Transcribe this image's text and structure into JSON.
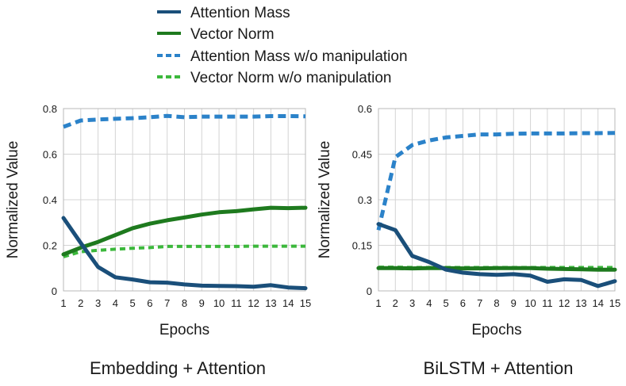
{
  "legend": [
    {
      "label": "Attention Mass",
      "color": "#1a4f7a",
      "dash": false
    },
    {
      "label": "Vector Norm",
      "color": "#1e7a1e",
      "dash": false
    },
    {
      "label": "Attention Mass w/o manipulation",
      "color": "#2b82c9",
      "dash": true
    },
    {
      "label": "Vector Norm w/o manipulation",
      "color": "#3cb83c",
      "dash": true
    }
  ],
  "chart_data": [
    {
      "type": "line",
      "title": "Embedding + Attention",
      "xlabel": "Epochs",
      "ylabel": "Normalized Value",
      "x": [
        1,
        2,
        3,
        4,
        5,
        6,
        7,
        8,
        9,
        10,
        11,
        12,
        13,
        14,
        15
      ],
      "xticks": [
        "1",
        "2",
        "3",
        "4",
        "5",
        "6",
        "7",
        "8",
        "9",
        "10",
        "11",
        "12",
        "13",
        "14",
        "15"
      ],
      "ylim": [
        0,
        0.8
      ],
      "yticks": [
        0,
        0.2,
        0.4,
        0.6,
        0.8
      ],
      "ytick_labels": [
        "0",
        "0.2",
        "0.4",
        "0.6",
        "0.8"
      ],
      "grid": true,
      "series": [
        {
          "name": "Attention Mass",
          "values": [
            0.32,
            0.21,
            0.105,
            0.06,
            0.05,
            0.038,
            0.036,
            0.028,
            0.023,
            0.022,
            0.021,
            0.018,
            0.025,
            0.015,
            0.012
          ]
        },
        {
          "name": "Vector Norm",
          "values": [
            0.16,
            0.19,
            0.215,
            0.245,
            0.275,
            0.295,
            0.31,
            0.322,
            0.335,
            0.345,
            0.35,
            0.358,
            0.365,
            0.363,
            0.365
          ]
        },
        {
          "name": "Attention Mass w/o manipulation",
          "values": [
            0.72,
            0.748,
            0.752,
            0.755,
            0.758,
            0.762,
            0.768,
            0.762,
            0.765,
            0.765,
            0.765,
            0.765,
            0.767,
            0.767,
            0.766
          ]
        },
        {
          "name": "Vector Norm w/o manipulation",
          "values": [
            0.15,
            0.172,
            0.178,
            0.183,
            0.187,
            0.19,
            0.195,
            0.195,
            0.195,
            0.195,
            0.195,
            0.196,
            0.196,
            0.196,
            0.196
          ]
        }
      ]
    },
    {
      "type": "line",
      "title": "BiLSTM + Attention",
      "xlabel": "Epochs",
      "ylabel": "Normalized Value",
      "x": [
        1,
        2,
        3,
        4,
        5,
        6,
        7,
        8,
        9,
        10,
        11,
        12,
        13,
        14,
        15
      ],
      "xticks": [
        "1",
        "2",
        "3",
        "4",
        "5",
        "6",
        "7",
        "8",
        "9",
        "10",
        "11",
        "12",
        "13",
        "14",
        "15"
      ],
      "ylim": [
        0,
        0.6
      ],
      "yticks": [
        0,
        0.15,
        0.3,
        0.45,
        0.6
      ],
      "ytick_labels": [
        "0",
        "0.15",
        "0.3",
        "0.45",
        "0.6"
      ],
      "grid": true,
      "series": [
        {
          "name": "Attention Mass",
          "values": [
            0.22,
            0.2,
            0.115,
            0.095,
            0.07,
            0.06,
            0.055,
            0.053,
            0.055,
            0.05,
            0.03,
            0.038,
            0.036,
            0.016,
            0.032
          ]
        },
        {
          "name": "Vector Norm",
          "values": [
            0.075,
            0.075,
            0.074,
            0.075,
            0.075,
            0.074,
            0.074,
            0.075,
            0.075,
            0.075,
            0.073,
            0.072,
            0.071,
            0.07,
            0.07
          ]
        },
        {
          "name": "Attention Mass w/o manipulation",
          "values": [
            0.2,
            0.44,
            0.48,
            0.495,
            0.505,
            0.51,
            0.515,
            0.515,
            0.517,
            0.518,
            0.518,
            0.518,
            0.519,
            0.519,
            0.52
          ]
        },
        {
          "name": "Vector Norm w/o manipulation",
          "values": [
            0.078,
            0.078,
            0.077,
            0.077,
            0.077,
            0.077,
            0.077,
            0.077,
            0.077,
            0.077,
            0.077,
            0.077,
            0.077,
            0.077,
            0.077
          ]
        }
      ]
    }
  ]
}
